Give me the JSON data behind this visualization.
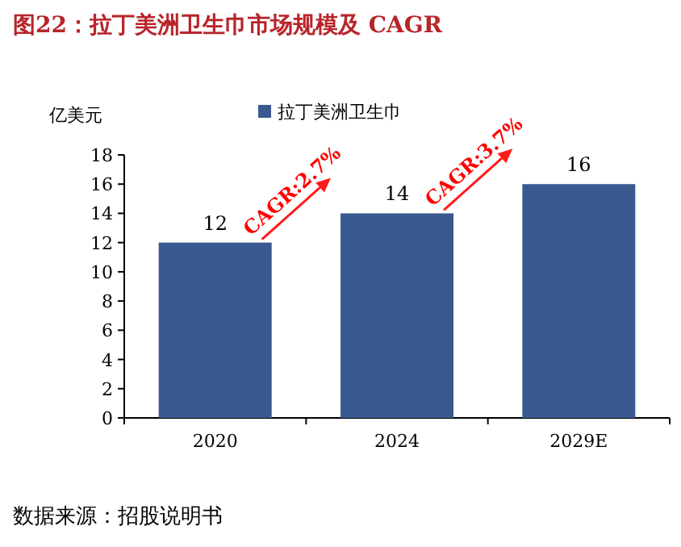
{
  "chart_data": {
    "type": "bar",
    "title": "图22：拉丁美洲卫生巾市场规模及 CAGR",
    "ylabel": "亿美元",
    "categories": [
      "2020",
      "2024",
      "2029E"
    ],
    "series": [
      {
        "name": "拉丁美洲卫生巾",
        "color": "#3a5a8f",
        "values": [
          12,
          14,
          16
        ]
      }
    ],
    "ylim": [
      0,
      18
    ],
    "yticks": [
      0,
      2,
      4,
      6,
      8,
      10,
      12,
      14,
      16,
      18
    ],
    "data_labels": true,
    "legend": "top",
    "annotations": [
      "CAGR:2.7%",
      "CAGR:3.7%",
      "数据来源：招股说明书"
    ]
  }
}
